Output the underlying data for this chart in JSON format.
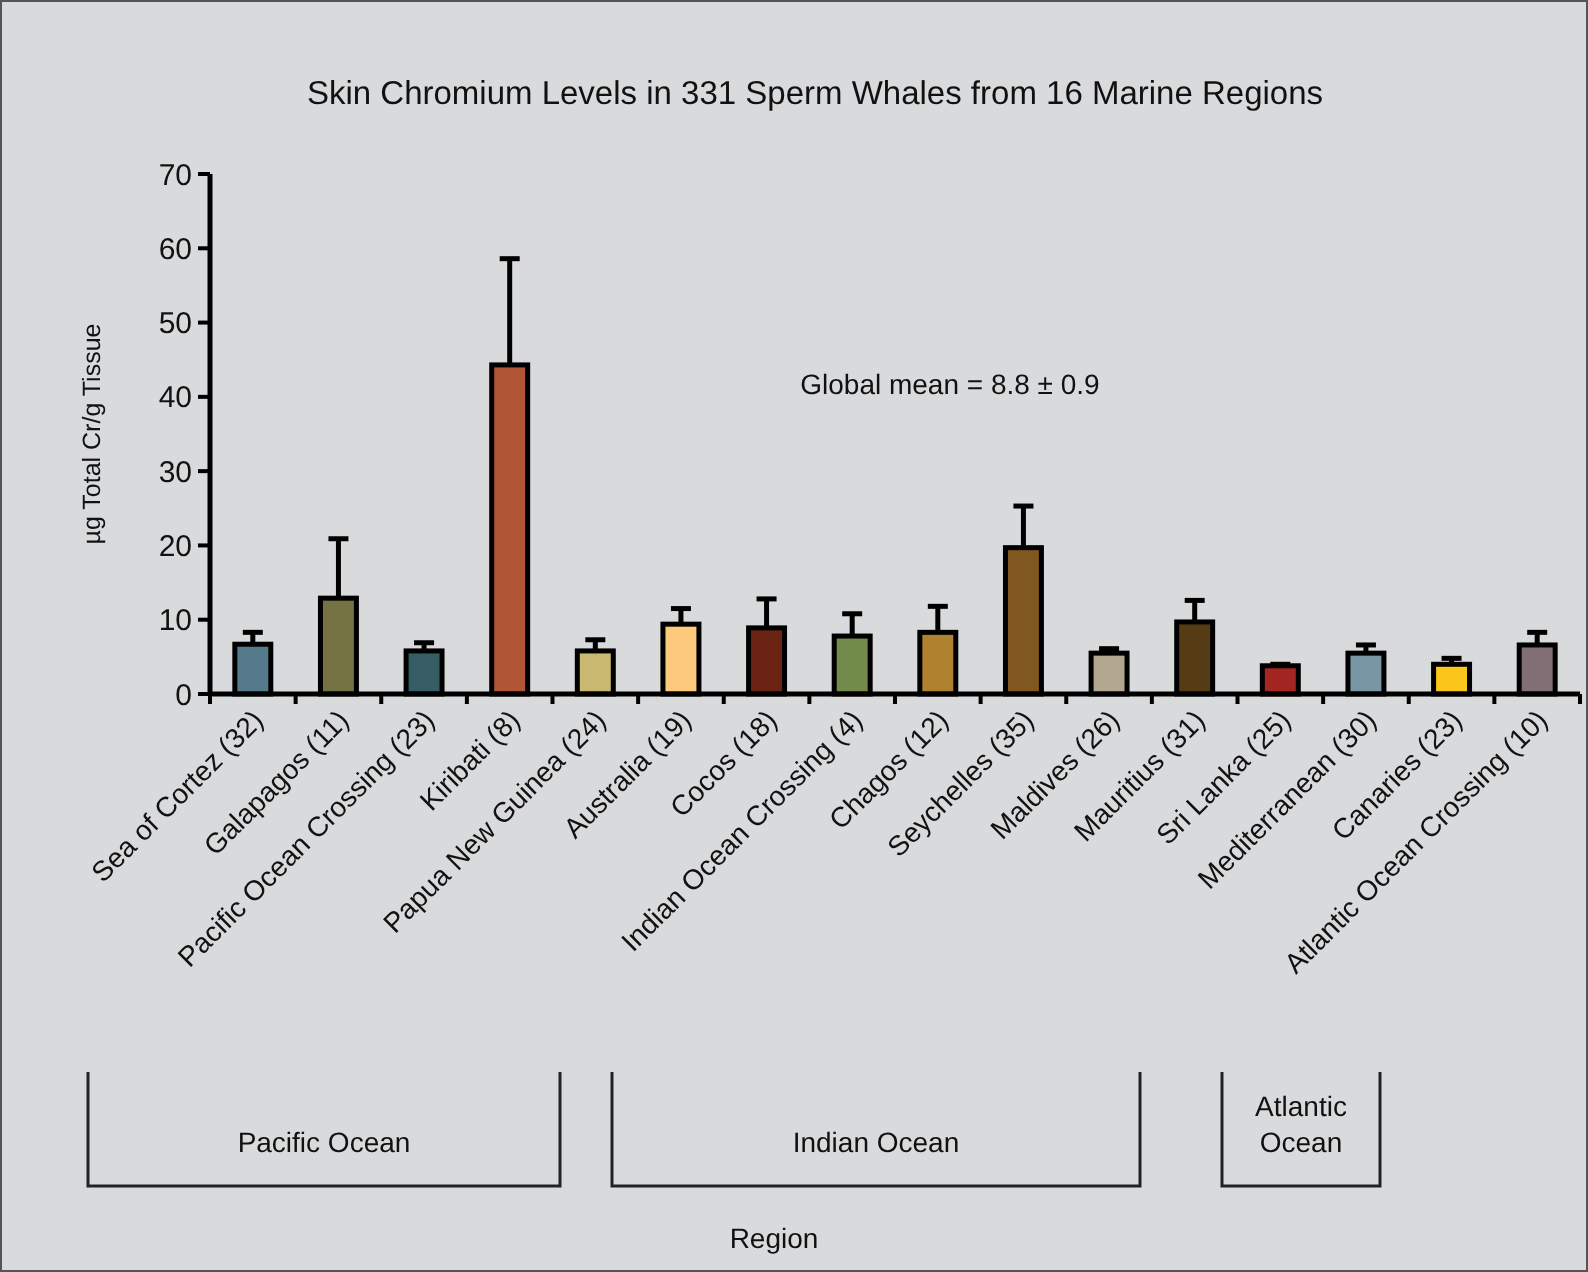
{
  "chart_data": {
    "type": "bar",
    "title": "Skin Chromium Levels in 331 Sperm Whales from 16 Marine Regions",
    "ylabel": "µg Total Cr/g Tissue",
    "categories": [
      "Sea of Cortez (32)",
      "Galapagos (11)",
      "Pacific Ocean Crossing (23)",
      "Kiribati (8)",
      "Papua New Guinea (24)",
      "Australia (19)",
      "Cocos (18)",
      "Indian Ocean Crossing (4)",
      "Chagos (12)",
      "Seychelles (35)",
      "Maldives (26)",
      "Mauritius (31)",
      "Sri Lanka (25)",
      "Mediterranean (30)",
      "Canaries (23)",
      "Atlantic Ocean Crossing (10)"
    ],
    "values": [
      6.7,
      12.9,
      5.8,
      44.3,
      5.8,
      9.4,
      8.9,
      7.8,
      8.3,
      19.7,
      5.5,
      9.7,
      3.8,
      5.5,
      4.0,
      6.6
    ],
    "errors": [
      [
        6.7,
        8.3
      ],
      [
        12.9,
        20.9
      ],
      [
        5.8,
        6.9
      ],
      [
        44.3,
        58.6
      ],
      [
        5.8,
        7.3
      ],
      [
        9.4,
        11.5
      ],
      [
        8.9,
        12.8
      ],
      [
        7.8,
        10.8
      ],
      [
        8.3,
        11.8
      ],
      [
        19.7,
        25.3
      ],
      [
        5.5,
        6.1
      ],
      [
        9.7,
        12.6
      ],
      [
        3.8,
        4.0
      ],
      [
        5.5,
        6.6
      ],
      [
        4.0,
        4.8
      ],
      [
        6.6,
        8.3
      ]
    ],
    "colors": [
      "#557a8c",
      "#757343",
      "#365c64",
      "#b05535",
      "#c9b870",
      "#fdc97c",
      "#6b2414",
      "#728b4a",
      "#b0812e",
      "#80581f",
      "#b2a890",
      "#563c14",
      "#a32623",
      "#7896a4",
      "#fcc51c",
      "#826e75"
    ],
    "ylim": [
      0,
      70
    ],
    "yticks": [
      0,
      10,
      20,
      30,
      40,
      50,
      60,
      70
    ],
    "grid": false,
    "annotations": [
      "Global mean = 8.8 ± 0.9",
      "Pacific Ocean",
      "Indian Ocean",
      "Atlantic Ocean",
      "Region"
    ]
  }
}
